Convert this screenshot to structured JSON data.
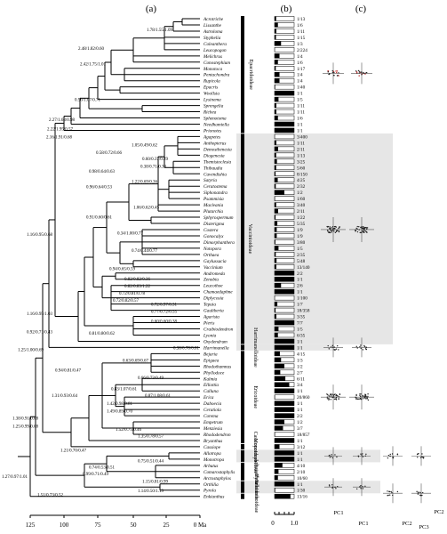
{
  "panels": [
    "(a)",
    "(b)",
    "(c)"
  ],
  "axis": {
    "ticks": [
      "125",
      "100",
      "75",
      "50",
      "25",
      "0 Ma"
    ],
    "scale": [
      "0",
      "1.0"
    ]
  },
  "taxa": [
    {
      "name": "Acrotriche",
      "ratio": "1/13",
      "v": 0.08
    },
    {
      "name": "Lissanthe",
      "ratio": "1/6",
      "v": 0.17
    },
    {
      "name": "Astroloma",
      "ratio": "1/11",
      "v": 0.09
    },
    {
      "name": "Styphelia",
      "ratio": "1/15",
      "v": 0.07
    },
    {
      "name": "Coleanthera",
      "ratio": "1/3",
      "v": 0.33
    },
    {
      "name": "Leucopogon",
      "ratio": "2/224",
      "v": 0.01
    },
    {
      "name": "Melichrus",
      "ratio": "1/4",
      "v": 0.25
    },
    {
      "name": "Conostephium",
      "ratio": "1/6",
      "v": 0.17
    },
    {
      "name": "Monotoca",
      "ratio": "1/17",
      "v": 0.06
    },
    {
      "name": "Pentachondra",
      "ratio": "1/4",
      "v": 0.25
    },
    {
      "name": "Rupicola",
      "ratio": "1/4",
      "v": 0.25
    },
    {
      "name": "Epacris",
      "ratio": "1/40",
      "v": 0.03
    },
    {
      "name": "Woollsia",
      "ratio": "1/1",
      "v": 1.0
    },
    {
      "name": "Lysinema",
      "ratio": "1/5",
      "v": 0.2
    },
    {
      "name": "Sprengelia",
      "ratio": "1/11",
      "v": 0.09
    },
    {
      "name": "Richea",
      "ratio": "1/11",
      "v": 0.09
    },
    {
      "name": "Sphenotoma",
      "ratio": "1/6",
      "v": 0.17
    },
    {
      "name": "Needhamiella",
      "ratio": "1/1",
      "v": 1.0
    },
    {
      "name": "Prionotes",
      "ratio": "1/1",
      "v": 1.0
    },
    {
      "name": "Agapetes",
      "ratio": "3/400",
      "v": 0.01
    },
    {
      "name": "Anthopterus",
      "ratio": "1/11",
      "v": 0.09
    },
    {
      "name": "Demosthenesia",
      "ratio": "2/11",
      "v": 0.18
    },
    {
      "name": "Diogenesia",
      "ratio": "1/13",
      "v": 0.08
    },
    {
      "name": "Themistoclesia",
      "ratio": "3/25",
      "v": 0.12
    },
    {
      "name": "Thibaudia",
      "ratio": "5/60",
      "v": 0.08
    },
    {
      "name": "Cavendishia",
      "ratio": "8/150",
      "v": 0.05
    },
    {
      "name": "Satyria",
      "ratio": "4/25",
      "v": 0.16
    },
    {
      "name": "Ceratostema",
      "ratio": "2/32",
      "v": 0.06
    },
    {
      "name": "Siphonandra",
      "ratio": "1/2",
      "v": 0.5
    },
    {
      "name": "Psammisia",
      "ratio": "1/60",
      "v": 0.02
    },
    {
      "name": "Macleania",
      "ratio": "3/40",
      "v": 0.08
    },
    {
      "name": "Plutarchia",
      "ratio": "2/11",
      "v": 0.18
    },
    {
      "name": "Sphyrospermum",
      "ratio": "1/22",
      "v": 0.05
    },
    {
      "name": "Disterigma",
      "ratio": "5/35",
      "v": 0.14
    },
    {
      "name": "Costera",
      "ratio": "1/9",
      "v": 0.11
    },
    {
      "name": "Gonocalyx",
      "ratio": "1/9",
      "v": 0.11
    },
    {
      "name": "Dimorphanthera",
      "ratio": "3/80",
      "v": 0.04
    },
    {
      "name": "Notopora",
      "ratio": "1/5",
      "v": 0.2
    },
    {
      "name": "Orthaea",
      "ratio": "2/35",
      "v": 0.06
    },
    {
      "name": "Gaylussacia",
      "ratio": "5/48",
      "v": 0.1
    },
    {
      "name": "Vaccinium",
      "ratio": "13/140",
      "v": 0.09
    },
    {
      "name": "Andromeda",
      "ratio": "2/2",
      "v": 1.0
    },
    {
      "name": "Zenobia",
      "ratio": "1/1",
      "v": 1.0
    },
    {
      "name": "Leucothoe",
      "ratio": "2/6",
      "v": 0.33
    },
    {
      "name": "Chamaedaphne",
      "ratio": "1/1",
      "v": 1.0
    },
    {
      "name": "Diplycosia",
      "ratio": "1/100",
      "v": 0.01
    },
    {
      "name": "Tepuia",
      "ratio": "1/7",
      "v": 0.14
    },
    {
      "name": "Gaultheria",
      "ratio": "18/358",
      "v": 0.05
    },
    {
      "name": "Agarista",
      "ratio": "3/35",
      "v": 0.09
    },
    {
      "name": "Pieris",
      "ratio": "7/7",
      "v": 1.0
    },
    {
      "name": "Craibiodendron",
      "ratio": "1/5",
      "v": 0.2
    },
    {
      "name": "Lyonia",
      "ratio": "6/35",
      "v": 0.17
    },
    {
      "name": "Oxydendrum",
      "ratio": "1/1",
      "v": 1.0
    },
    {
      "name": "Harrimanella",
      "ratio": "1/1",
      "v": 1.0
    },
    {
      "name": "Bejaria",
      "ratio": "4/15",
      "v": 0.27
    },
    {
      "name": "Epigaea",
      "ratio": "1/3",
      "v": 0.33
    },
    {
      "name": "Rhodothamnus",
      "ratio": "1/2",
      "v": 0.5
    },
    {
      "name": "Phyllodoce",
      "ratio": "2/7",
      "v": 0.29
    },
    {
      "name": "Kalmia",
      "ratio": "6/11",
      "v": 0.55
    },
    {
      "name": "Elliottia",
      "ratio": "3/4",
      "v": 0.75
    },
    {
      "name": "Calluna",
      "ratio": "1/1",
      "v": 1.0
    },
    {
      "name": "Erica",
      "ratio": "20/860",
      "v": 0.02
    },
    {
      "name": "Daboecia",
      "ratio": "1/1",
      "v": 1.0
    },
    {
      "name": "Ceratiola",
      "ratio": "1/1",
      "v": 1.0
    },
    {
      "name": "Corema",
      "ratio": "2/2",
      "v": 1.0
    },
    {
      "name": "Empetrum",
      "ratio": "1/2",
      "v": 0.5
    },
    {
      "name": "Menziesia",
      "ratio": "3/7",
      "v": 0.43
    },
    {
      "name": "Rhododendron",
      "ratio": "18/857",
      "v": 0.02
    },
    {
      "name": "Bryanthus",
      "ratio": "1/1",
      "v": 1.0
    },
    {
      "name": "Cassiope",
      "ratio": "3/12",
      "v": 0.25
    },
    {
      "name": "Allotropa",
      "ratio": "1/1",
      "v": 1.0
    },
    {
      "name": "Monotropa",
      "ratio": "1/1",
      "v": 1.0
    },
    {
      "name": "Arbutus",
      "ratio": "4/10",
      "v": 0.4
    },
    {
      "name": "Comarostaphylis",
      "ratio": "2/10",
      "v": 0.2
    },
    {
      "name": "Arctostaphylos",
      "ratio": "10/60",
      "v": 0.17
    },
    {
      "name": "Orthilia",
      "ratio": "1/1",
      "v": 1.0
    },
    {
      "name": "Pyrola",
      "ratio": "1/30",
      "v": 0.03
    },
    {
      "name": "Enkianthus",
      "ratio": "13/16",
      "v": 0.81
    }
  ],
  "subfamilies": [
    "Epacridoideae",
    "Vaccinioideae",
    "Harrimanelloideae",
    "Ericoideae",
    "Cassiopoideae",
    "Monotropoideae",
    "Arbutoideae",
    "Pyroloideae",
    "Enkianthoideae"
  ],
  "node_labels": [
    "1.78/1.55/1.09",
    "2.48/1.82/0.60",
    "2.42/1.75/1.01",
    "0.96/1.07/0.71",
    "2.27/1.63/0.98",
    "2.22/1.95/0.57",
    "2.16/1.91/0.68",
    "1.05/0.49/0.62",
    "0.58/0.72/0.66",
    "0.60/0.37/0.29",
    "0.98/0.64/0.63",
    "0.38/0.71/0.33",
    "1.22/0.69/0.36",
    "0.96/0.64/0.53",
    "1.06/0.62/0.45",
    "0.91/0.60/0.61",
    "0.34/1.00/0.77",
    "1.16/0.95/0.68",
    "0.74/0.44/0.77",
    "0.94/0.65/0.59",
    "0.82/0.82/0.36",
    "0.82/0.83/1.22",
    "0.72/0.81/0.78",
    "0.72/0.82/0.57",
    "0.72/0.97/0.31",
    "0.77/0.72/0.55",
    "1.16/0.95/1.03",
    "0.60/0.60/0.38",
    "0.92/0.71/0.43",
    "0.81/0.80/0.62",
    "0.38/0.78/0.81",
    "1.25/1.00/0.69",
    "0.63/0.69/0.67",
    "0.94/0.81/0.47",
    "0.66/0.73/0.49",
    "0.83/1.07/0.61",
    "1.31/0.93/0.64",
    "0.87/1.08/0.61",
    "1.42/0.98/0.81",
    "1.49/0.89/0.70",
    "1.38/0.91/0.68",
    "1.25/0.99/0.68",
    "1.52/0.75/0.46",
    "1.35/0.78/0.57",
    "1.21/0.70/0.47",
    "0.75/0.51/0.44",
    "0.74/0.53/0.51",
    "0.99/0.71/0.49",
    "1.27/0.97/1.01",
    "1.15/0.81/0.99",
    "1.14/0.50/1.19",
    "1.51/0.73/0.52"
  ],
  "pc_labels": [
    "PC1",
    "PC2",
    "PC1",
    "PC2",
    "PC3"
  ],
  "colors": {
    "line": "#000000",
    "shade": "#e6e6e6",
    "scatter": "#c03030"
  }
}
